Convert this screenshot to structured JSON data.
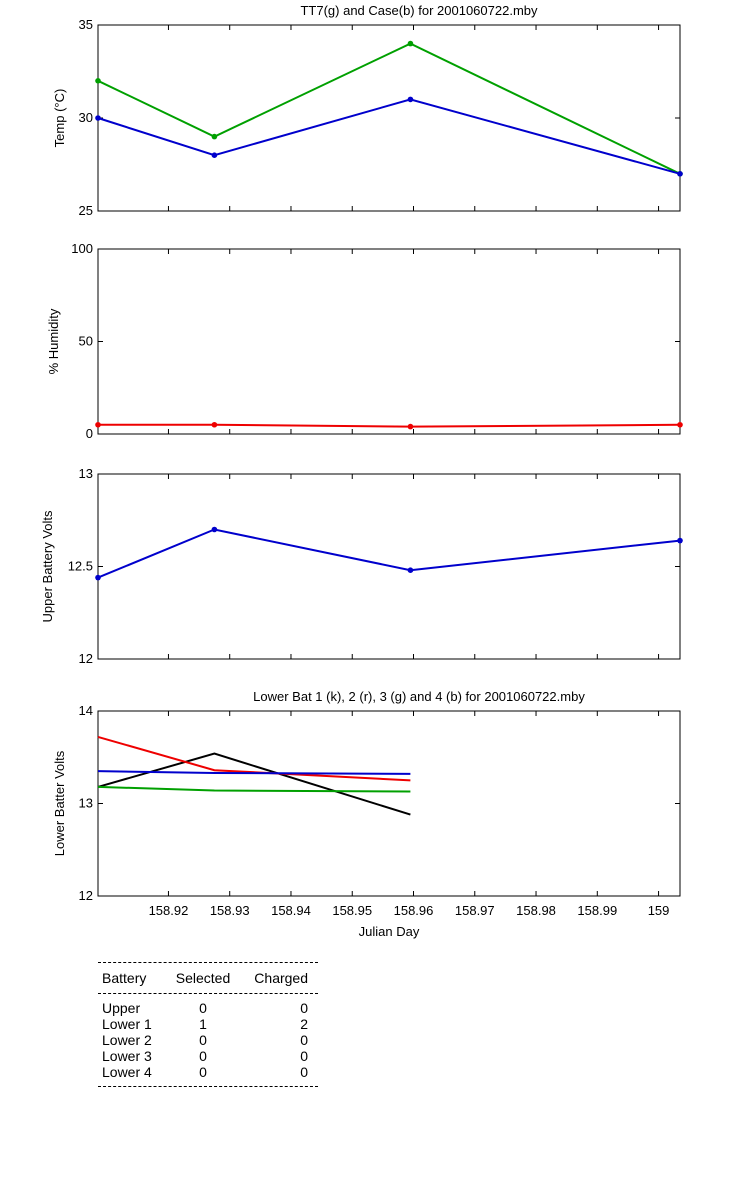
{
  "chart_data": [
    {
      "type": "line",
      "title": "TT7(g) and Case(b) for 2001060722.mby",
      "xlabel": "",
      "ylabel": "Temp (°C)",
      "ylim": [
        25,
        35
      ],
      "yticks": [
        "25",
        "30",
        "35"
      ],
      "xlim": [
        158.9085,
        159.0035
      ],
      "grid": false,
      "series": [
        {
          "color": "#00a000",
          "x": [
            158.9085,
            158.9275,
            158.9595,
            159.0035
          ],
          "y": [
            32,
            29,
            34,
            27
          ]
        },
        {
          "color": "#0000cc",
          "x": [
            158.9085,
            158.9275,
            158.9595,
            159.0035
          ],
          "y": [
            30,
            28,
            31,
            27
          ]
        }
      ]
    },
    {
      "type": "line",
      "title": "",
      "xlabel": "",
      "ylabel": "% Humidity",
      "ylim": [
        0,
        100
      ],
      "yticks": [
        "0",
        "50",
        "100"
      ],
      "xlim": [
        158.9085,
        159.0035
      ],
      "grid": false,
      "series": [
        {
          "color": "#ee0000",
          "x": [
            158.9085,
            158.9275,
            158.9595,
            159.0035
          ],
          "y": [
            5,
            5,
            4,
            5
          ]
        }
      ]
    },
    {
      "type": "line",
      "title": "",
      "xlabel": "",
      "ylabel": "Upper Battery Volts",
      "ylim": [
        12,
        13
      ],
      "yticks": [
        "12",
        "12.5",
        "13"
      ],
      "xlim": [
        158.9085,
        159.0035
      ],
      "grid": false,
      "series": [
        {
          "color": "#0000cc",
          "x": [
            158.9085,
            158.9275,
            158.9595,
            159.0035
          ],
          "y": [
            12.44,
            12.7,
            12.48,
            12.64
          ]
        }
      ]
    },
    {
      "type": "line",
      "title": "Lower Bat 1 (k), 2 (r), 3 (g) and 4 (b) for 2001060722.mby",
      "xlabel": "Julian Day",
      "ylabel": "Lower Batter Volts",
      "ylim": [
        12,
        14
      ],
      "yticks": [
        "12",
        "13",
        "14"
      ],
      "xlim": [
        158.9085,
        159.0035
      ],
      "xticks": [
        "158.92",
        "158.93",
        "158.94",
        "158.95",
        "158.96",
        "158.97",
        "158.98",
        "158.99",
        "159"
      ],
      "grid": false,
      "series": [
        {
          "color": "#000000",
          "x": [
            158.9085,
            158.9275,
            158.9595
          ],
          "y": [
            13.18,
            13.54,
            12.88
          ]
        },
        {
          "color": "#ee0000",
          "x": [
            158.9085,
            158.9275,
            158.9595
          ],
          "y": [
            13.72,
            13.36,
            13.25
          ]
        },
        {
          "color": "#00a000",
          "x": [
            158.9085,
            158.9275,
            158.9595
          ],
          "y": [
            13.18,
            13.14,
            13.13
          ]
        },
        {
          "color": "#0000cc",
          "x": [
            158.9085,
            158.9275,
            158.9595
          ],
          "y": [
            13.35,
            13.33,
            13.32
          ]
        }
      ]
    }
  ],
  "summary": {
    "headers": [
      "Battery",
      "Selected",
      "Charged"
    ],
    "rows": [
      [
        "Upper",
        "0",
        "0"
      ],
      [
        "Lower 1",
        "1",
        "2"
      ],
      [
        "Lower 2",
        "0",
        "0"
      ],
      [
        "Lower 3",
        "0",
        "0"
      ],
      [
        "Lower 4",
        "0",
        "0"
      ]
    ]
  }
}
